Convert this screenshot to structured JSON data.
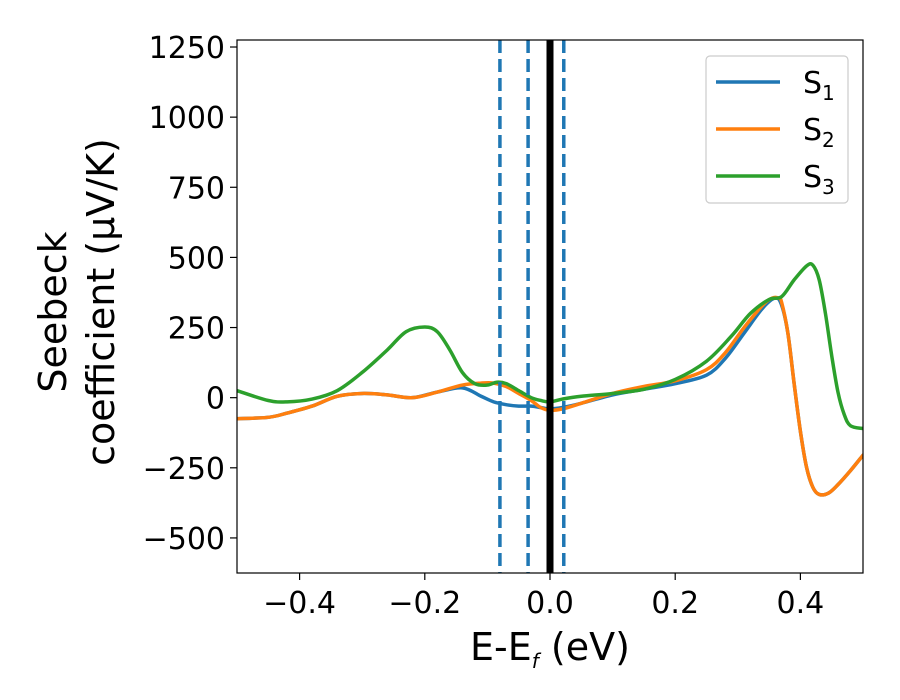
{
  "chart_data": {
    "type": "line",
    "xlabel": {
      "main": "E-E",
      "sub": "f",
      "unit": " (eV)"
    },
    "ylabel": {
      "line1": "Seebeck",
      "line2": "coefficient  (μV/K)"
    },
    "xlim": [
      -0.5,
      0.5
    ],
    "ylim": [
      -625,
      1275
    ],
    "xticks": [
      {
        "value": -0.4,
        "label": "−0.4"
      },
      {
        "value": -0.2,
        "label": "−0.2"
      },
      {
        "value": 0.0,
        "label": "0.0"
      },
      {
        "value": 0.2,
        "label": "0.2"
      },
      {
        "value": 0.4,
        "label": "0.4"
      }
    ],
    "yticks": [
      {
        "value": -500,
        "label": "−500"
      },
      {
        "value": -250,
        "label": "−250"
      },
      {
        "value": 0,
        "label": "0"
      },
      {
        "value": 250,
        "label": "250"
      },
      {
        "value": 500,
        "label": "500"
      },
      {
        "value": 750,
        "label": "750"
      },
      {
        "value": 1000,
        "label": "1000"
      },
      {
        "value": 1250,
        "label": "1250"
      }
    ],
    "grid": false,
    "legend_position": "top-right",
    "vertical_lines": [
      {
        "x": -0.08,
        "style": "dashed",
        "color": "#1f77b4"
      },
      {
        "x": -0.035,
        "style": "dashed",
        "color": "#1f77b4"
      },
      {
        "x": 0.0,
        "style": "solid",
        "color": "#000000"
      },
      {
        "x": 0.022,
        "style": "dashed",
        "color": "#1f77b4"
      }
    ],
    "series": [
      {
        "name": "S",
        "sub": "1",
        "color": "#1f77b4",
        "x": [
          -0.5,
          -0.45,
          -0.42,
          -0.38,
          -0.34,
          -0.3,
          -0.26,
          -0.22,
          -0.18,
          -0.14,
          -0.11,
          -0.09,
          -0.07,
          -0.05,
          -0.03,
          -0.015,
          0.0,
          0.02,
          0.05,
          0.1,
          0.15,
          0.2,
          0.25,
          0.28,
          0.31,
          0.34,
          0.36,
          0.37,
          0.38,
          0.39,
          0.4,
          0.41,
          0.42,
          0.43,
          0.445,
          0.46,
          0.48,
          0.5
        ],
        "y": [
          -75,
          -70,
          -55,
          -30,
          5,
          15,
          10,
          0,
          20,
          35,
          5,
          -15,
          -25,
          -30,
          -30,
          -35,
          -40,
          -35,
          -20,
          10,
          30,
          50,
          80,
          140,
          230,
          320,
          355,
          330,
          230,
          50,
          -120,
          -250,
          -320,
          -345,
          -340,
          -310,
          -260,
          -205
        ]
      },
      {
        "name": "S",
        "sub": "2",
        "color": "#ff7f0e",
        "x": [
          -0.5,
          -0.45,
          -0.42,
          -0.38,
          -0.34,
          -0.3,
          -0.26,
          -0.22,
          -0.18,
          -0.14,
          -0.11,
          -0.09,
          -0.07,
          -0.05,
          -0.03,
          -0.015,
          0.0,
          0.02,
          0.05,
          0.1,
          0.15,
          0.2,
          0.25,
          0.28,
          0.31,
          0.34,
          0.355,
          0.365,
          0.37,
          0.38,
          0.39,
          0.4,
          0.41,
          0.42,
          0.43,
          0.445,
          0.46,
          0.48,
          0.5
        ],
        "y": [
          -75,
          -70,
          -55,
          -30,
          5,
          15,
          10,
          0,
          20,
          45,
          52,
          52,
          40,
          15,
          -10,
          -35,
          -45,
          -40,
          -20,
          15,
          40,
          60,
          100,
          160,
          250,
          330,
          355,
          355,
          340,
          230,
          50,
          -120,
          -250,
          -320,
          -345,
          -340,
          -310,
          -260,
          -205
        ]
      },
      {
        "name": "S",
        "sub": "3",
        "color": "#2ca02c",
        "x": [
          -0.5,
          -0.45,
          -0.42,
          -0.38,
          -0.34,
          -0.3,
          -0.26,
          -0.23,
          -0.2,
          -0.18,
          -0.16,
          -0.14,
          -0.12,
          -0.1,
          -0.085,
          -0.07,
          -0.05,
          -0.03,
          -0.015,
          0.0,
          0.02,
          0.05,
          0.1,
          0.15,
          0.2,
          0.25,
          0.29,
          0.32,
          0.35,
          0.37,
          0.39,
          0.41,
          0.42,
          0.43,
          0.44,
          0.45,
          0.46,
          0.47,
          0.48,
          0.5
        ],
        "y": [
          25,
          -10,
          -15,
          -5,
          25,
          90,
          170,
          235,
          252,
          235,
          170,
          90,
          50,
          45,
          55,
          50,
          25,
          0,
          -10,
          -15,
          -5,
          5,
          15,
          30,
          65,
          130,
          220,
          300,
          350,
          360,
          420,
          470,
          472,
          420,
          300,
          150,
          20,
          -60,
          -100,
          -110
        ]
      }
    ]
  }
}
